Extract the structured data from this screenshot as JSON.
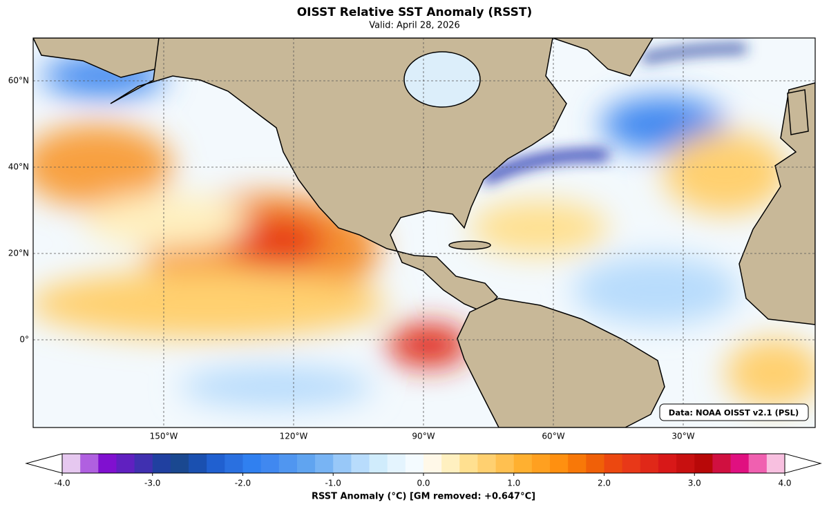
{
  "title": "OISST Relative SST Anomaly (RSST)",
  "subtitle": "Valid: April 28, 2026",
  "map": {
    "lat_labels": [
      "60°N",
      "40°N",
      "20°N",
      "0°"
    ],
    "lon_labels": [
      "150°W",
      "120°W",
      "90°W",
      "60°W",
      "30°W"
    ],
    "source_note": "Data: NOAA OISST v2.1 (PSL)"
  },
  "colorbar": {
    "label": "RSST Anomaly (°C) [GM removed: +0.647°C]",
    "ticks": [
      "-4.0",
      "-3.0",
      "-2.0",
      "-1.0",
      "0.0",
      "1.0",
      "2.0",
      "3.0",
      "4.0"
    ],
    "colors": [
      "#e6c8f0",
      "#b060e0",
      "#8010d0",
      "#6020c0",
      "#4030b0",
      "#2040a0",
      "#1a4890",
      "#1a50b0",
      "#2060d0",
      "#2a70e0",
      "#3080f0",
      "#4088f0",
      "#5096f0",
      "#60a4f0",
      "#78b4f4",
      "#98c8f8",
      "#b8dcfc",
      "#d0ecfc",
      "#e4f4fe",
      "#f4fbff",
      "#fff8e8",
      "#fff0c0",
      "#ffe090",
      "#ffd070",
      "#ffc050",
      "#ffb030",
      "#ffa020",
      "#ff9010",
      "#f87808",
      "#f06008",
      "#ec4810",
      "#e83818",
      "#e02818",
      "#d81818",
      "#c81010",
      "#b80808",
      "#d01040",
      "#e01080",
      "#f060b0",
      "#f8c0e0"
    ]
  }
}
